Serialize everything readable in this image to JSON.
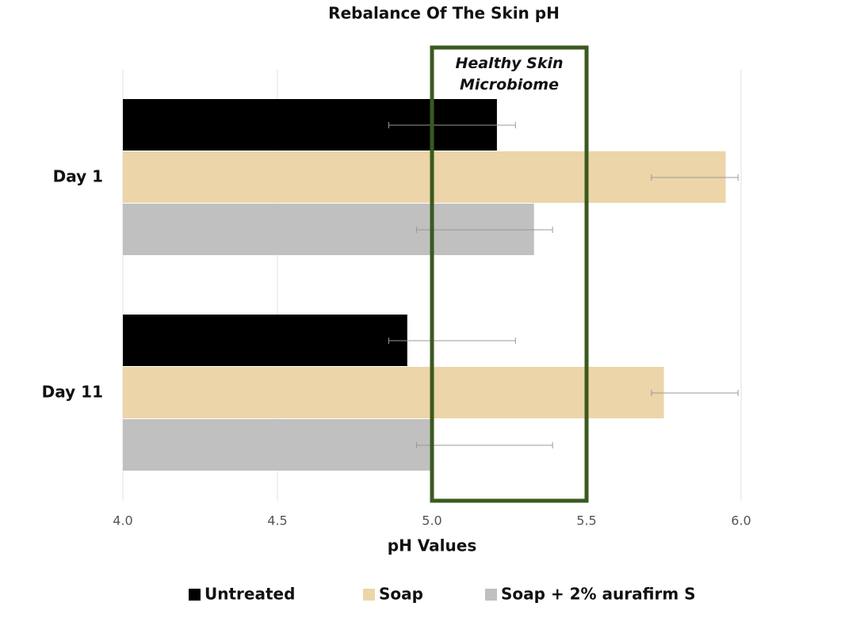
{
  "chart_data": {
    "type": "barh",
    "title": "Rebalance Of The Skin pH",
    "xlabel": "pH Values",
    "categories": [
      "Day 1",
      "Day 11"
    ],
    "series": [
      {
        "name": "Untreated",
        "color": "#000000",
        "values": [
          5.21,
          4.92
        ],
        "error_ranges": [
          [
            4.86,
            5.27
          ],
          [
            4.86,
            5.27
          ]
        ]
      },
      {
        "name": "Soap",
        "color": "#ecd5a8",
        "values": [
          5.95,
          5.75
        ],
        "error_ranges": [
          [
            5.71,
            5.99
          ],
          [
            5.71,
            5.99
          ]
        ]
      },
      {
        "name": "Soap +  2% aurafirm S",
        "color": "#c0c0c0",
        "values": [
          5.33,
          5.0
        ],
        "error_ranges": [
          [
            4.95,
            5.39
          ],
          [
            4.95,
            5.39
          ]
        ]
      }
    ],
    "xlim": [
      4.0,
      6.0
    ],
    "xticks": [
      {
        "value": 4.0,
        "label": "4.0"
      },
      {
        "value": 4.5,
        "label": "4.5"
      },
      {
        "value": 5.0,
        "label": "5.0"
      },
      {
        "value": 5.5,
        "label": "5.5"
      },
      {
        "value": 6.0,
        "label": "6.0"
      }
    ],
    "grid": true,
    "highlight": {
      "label": "Healthy Skin Microbiome",
      "range": [
        5.0,
        5.5
      ],
      "color": "#3a5a1e"
    },
    "legend": "bottom"
  }
}
